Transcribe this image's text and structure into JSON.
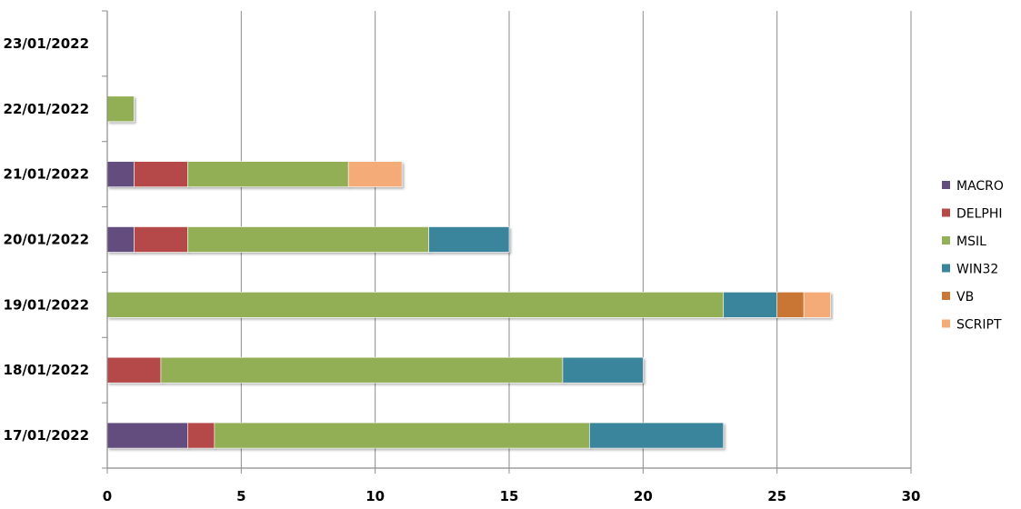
{
  "chart_data": {
    "type": "bar",
    "orientation": "horizontal",
    "stacked": true,
    "categories": [
      "17/01/2022",
      "18/01/2022",
      "19/01/2022",
      "20/01/2022",
      "21/01/2022",
      "22/01/2022",
      "23/01/2022"
    ],
    "series": [
      {
        "name": "MACRO",
        "color": "#634D7F",
        "values": [
          3,
          0,
          0,
          1,
          1,
          0,
          0
        ]
      },
      {
        "name": "DELPHI",
        "color": "#B54A48",
        "values": [
          1,
          2,
          0,
          2,
          2,
          0,
          0
        ]
      },
      {
        "name": "MSIL",
        "color": "#93AF57",
        "values": [
          14,
          15,
          23,
          9,
          6,
          1,
          0
        ]
      },
      {
        "name": "WIN32",
        "color": "#3A859C",
        "values": [
          5,
          3,
          2,
          3,
          0,
          0,
          0
        ]
      },
      {
        "name": "VB",
        "color": "#C97636",
        "values": [
          0,
          0,
          1,
          0,
          0,
          0,
          0
        ]
      },
      {
        "name": "SCRIPT",
        "color": "#F5AB78",
        "values": [
          0,
          0,
          1,
          0,
          2,
          0,
          0
        ]
      }
    ],
    "xlim": [
      0,
      30
    ],
    "xticks": [
      "0",
      "5",
      "10",
      "15",
      "20",
      "25",
      "30"
    ],
    "grid": "vertical",
    "legend": "right"
  }
}
